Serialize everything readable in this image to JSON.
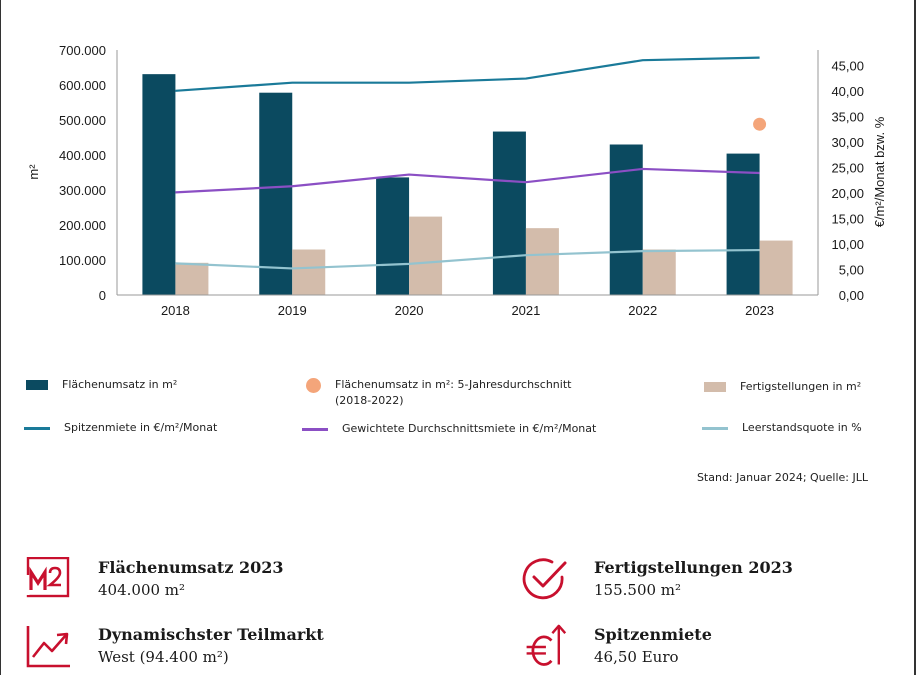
{
  "chart_data": {
    "type": "bar",
    "categories": [
      "2018",
      "2019",
      "2020",
      "2021",
      "2022",
      "2023"
    ],
    "left_axis": {
      "label": "m²",
      "ylim": [
        0,
        700000
      ],
      "tick_labels": [
        "0",
        "100.000",
        "200.000",
        "300.000",
        "400.000",
        "500.000",
        "600.000",
        "700.000"
      ]
    },
    "right_axis": {
      "label": "€/m²/Monat bzw. %",
      "ylim": [
        0,
        48
      ],
      "tick_labels": [
        "0,00",
        "5,00",
        "10,00",
        "15,00",
        "20,00",
        "25,00",
        "30,00",
        "35,00",
        "40,00",
        "45,00"
      ]
    },
    "bar_series": [
      {
        "name": "Flächenumsatz in m²",
        "color": "#0b4a60",
        "values": [
          631000,
          578000,
          336000,
          467000,
          430000,
          404000
        ]
      },
      {
        "name": "Fertigstellungen in m²",
        "color": "#d3bcab",
        "values": [
          92000,
          130000,
          224000,
          191000,
          130000,
          155500
        ]
      }
    ],
    "line_series": [
      {
        "name": "Spitzenmiete in €/m²/Monat",
        "color": "#1a7a99",
        "values": [
          40.0,
          41.6,
          41.6,
          42.4,
          46.0,
          46.5
        ]
      },
      {
        "name": "Gewichtete Durchschnittsmiete in €/m²/Monat",
        "color": "#8b4fc4",
        "values": [
          20.1,
          21.3,
          23.6,
          22.1,
          24.7,
          23.9
        ]
      },
      {
        "name": "Leerstandsquote in %",
        "color": "#93c3cf",
        "values": [
          6.2,
          5.2,
          6.1,
          7.8,
          8.6,
          8.8
        ]
      }
    ],
    "point_series": [
      {
        "name": "Flächenumsatz in m²: 5-Jahresdurchschnitt (2018-2022)",
        "color": "#f4a57a",
        "category": "2023",
        "value": 488000
      }
    ],
    "legend_placement": "bottom",
    "grid": false
  },
  "legend": [
    {
      "label": "Flächenumsatz in m²",
      "symbol": "bar",
      "color": "#0b4a60"
    },
    {
      "label": "Flächenumsatz in m²: 5-Jahresdurchschnitt",
      "label2": "(2018-2022)",
      "symbol": "dot",
      "color": "#f4a57a"
    },
    {
      "label": "Fertigstellungen in m²",
      "symbol": "bar",
      "color": "#d3bcab"
    },
    {
      "label": "Spitzenmiete in €/m²/Monat",
      "symbol": "line",
      "color": "#1a7a99"
    },
    {
      "label": "Gewichtete Durchschnittsmiete in €/m²/Monat",
      "symbol": "line",
      "color": "#8b4fc4"
    },
    {
      "label": "Leerstandsquote in %",
      "symbol": "line",
      "color": "#93c3cf"
    }
  ],
  "source": "Stand: Januar 2024; Quelle: JLL",
  "kpis": [
    {
      "title": "Flächenumsatz 2023",
      "value": "404.000 m²",
      "icon": "m2-icon"
    },
    {
      "title": "Fertigstellungen 2023",
      "value": "155.500 m²",
      "icon": "check-circle-icon"
    },
    {
      "title": "Dynamischster Teilmarkt",
      "value": "West (94.400 m²)",
      "icon": "trend-up-icon"
    },
    {
      "title": "Spitzenmiete",
      "value": "46,50 Euro",
      "icon": "euro-up-icon"
    }
  ],
  "accent_color": "#c8102e"
}
